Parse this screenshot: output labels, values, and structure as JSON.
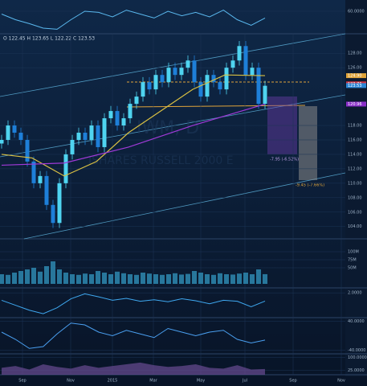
{
  "chart_data": [
    {
      "type": "candlestick",
      "header": "O 122.45 H 123.65 L 122.22 C 123.53",
      "watermark": [
        "IWM, D",
        "ISHARES RUSSELL 2000 E"
      ],
      "annotations": [
        "-7.95 (-6.52%)",
        "-9.45 (-7.66%)"
      ],
      "up_color": "#4fd4f0",
      "down_color": "#1e7fd8",
      "x": [
        2,
        10,
        18,
        26,
        34,
        42,
        50,
        58,
        66,
        74,
        82,
        90,
        98,
        106,
        114,
        122,
        130,
        138,
        146,
        154,
        162,
        170,
        178,
        186,
        194,
        202,
        210,
        218,
        226,
        234,
        242,
        250,
        258,
        266,
        274,
        282,
        290,
        298,
        306,
        314,
        322,
        330
      ],
      "open": [
        115.5,
        116,
        118,
        117,
        116,
        113,
        110,
        111,
        107,
        104.5,
        110,
        114,
        116,
        117,
        116,
        118,
        115,
        119,
        120,
        118,
        119,
        121,
        122,
        124,
        123,
        125,
        124,
        126,
        125,
        126,
        127,
        124,
        122,
        125,
        124,
        123,
        126,
        127,
        129,
        125,
        126,
        121
      ],
      "high": [
        116.7,
        118.7,
        118.7,
        117.7,
        116.7,
        113.7,
        111.7,
        111.7,
        107.7,
        110.7,
        114.7,
        116.7,
        117.7,
        117.7,
        118.7,
        118.7,
        119.7,
        120.7,
        120.7,
        119.7,
        121.7,
        122.7,
        124.7,
        124.7,
        125.7,
        125.7,
        126.7,
        126.7,
        126.7,
        127.7,
        127.7,
        124.7,
        125.7,
        125.7,
        124.7,
        126.7,
        127.7,
        129.7,
        129.7,
        126.7,
        126.7,
        124.2
      ],
      "low": [
        114.8,
        115.3,
        116.3,
        115.3,
        112.3,
        109.3,
        109.3,
        106.3,
        103.8,
        103.8,
        109.3,
        113.3,
        115.3,
        115.3,
        115.3,
        114.3,
        114.3,
        118.3,
        117.3,
        117.3,
        118.3,
        120.3,
        121.3,
        122.3,
        122.3,
        123.3,
        123.3,
        124.3,
        124.3,
        125.3,
        123.3,
        121.3,
        121.3,
        123.3,
        122.3,
        122.3,
        125.3,
        126.3,
        124.3,
        124.3,
        120.3,
        120.3
      ],
      "close": [
        116,
        118,
        117,
        116,
        113,
        110,
        111,
        107,
        104.5,
        110,
        114,
        116,
        117,
        116,
        118,
        115,
        119,
        120,
        118,
        119,
        121,
        122,
        124,
        123,
        125,
        124,
        126,
        125,
        126,
        127,
        124,
        122,
        125,
        124,
        123,
        126,
        127,
        129,
        125,
        126,
        121,
        123.5
      ],
      "lines": [
        {
          "color": "#d9c043",
          "x": [
            2,
            40,
            80,
            120,
            160,
            200,
            240,
            280,
            330
          ],
          "values": [
            114,
            113.5,
            111,
            113,
            117,
            120,
            123,
            125,
            124.9
          ]
        },
        {
          "color": "#a03ad8",
          "x": [
            2,
            80,
            160,
            240,
            330
          ],
          "values": [
            112.5,
            112.8,
            115,
            118,
            120.96
          ]
        }
      ],
      "price_labels": [
        {
          "value": 124.9,
          "label": "124.90",
          "color": "#e0a43a"
        },
        {
          "value": 123.76,
          "label": "123.76",
          "color": "#d8333f"
        },
        {
          "value": 123.53,
          "label": "123.53",
          "color": "#2b86d6"
        },
        {
          "value": 120.96,
          "label": "120.96",
          "color": "#8a2fc9"
        }
      ],
      "xlim": [
        0,
        430
      ],
      "ylim": [
        102.3,
        130.7
      ],
      "xticks": [
        {
          "value": 28,
          "label": "Sep"
        },
        {
          "value": 88,
          "label": "Nov"
        },
        {
          "value": 140,
          "label": "2015"
        },
        {
          "value": 191,
          "label": "Mar"
        },
        {
          "value": 250,
          "label": "May"
        },
        {
          "value": 305,
          "label": "Jul"
        },
        {
          "value": 365,
          "label": "Sep"
        },
        {
          "value": 425,
          "label": "Nov"
        }
      ],
      "yticks": [
        {
          "value": 104,
          "label": "104.00"
        },
        {
          "value": 106,
          "label": "106.00"
        },
        {
          "value": 108,
          "label": "108.00"
        },
        {
          "value": 110,
          "label": "110.00"
        },
        {
          "value": 112,
          "label": "112.00"
        },
        {
          "value": 114,
          "label": "114.00"
        },
        {
          "value": 116,
          "label": "116.00"
        },
        {
          "value": 118,
          "label": "118.00"
        },
        {
          "value": 126,
          "label": "126.00"
        },
        {
          "value": 128,
          "label": "128.00"
        }
      ]
    },
    {
      "type": "line",
      "color": "#5ab8ee",
      "ylim": [
        20,
        80
      ],
      "yticks": [
        {
          "value": 60,
          "label": "60.0000"
        }
      ],
      "values": [
        55,
        45,
        38,
        30,
        28,
        45,
        60,
        58,
        50,
        62,
        55,
        48,
        60,
        52,
        58,
        50,
        62,
        45,
        35,
        48
      ]
    },
    {
      "type": "bar",
      "color": "#2f8fb8",
      "ylim": [
        -12.5,
        140
      ],
      "yticks": [
        {
          "value": 100,
          "label": "100M"
        },
        {
          "value": 75,
          "label": "75M"
        },
        {
          "value": 50,
          "label": "50M"
        }
      ],
      "values": [
        30,
        28,
        35,
        40,
        45,
        50,
        38,
        55,
        70,
        45,
        35,
        30,
        28,
        32,
        30,
        40,
        35,
        30,
        38,
        33,
        30,
        28,
        35,
        32,
        30,
        28,
        30,
        33,
        29,
        31,
        40,
        35,
        30,
        28,
        33,
        30,
        29,
        32,
        35,
        30,
        45,
        30.169
      ]
    },
    {
      "type": "line",
      "color": "#3fa8f0",
      "ylim": [
        -3,
        3
      ],
      "yticks": [
        {
          "value": 2,
          "label": "2.0000"
        }
      ],
      "values": [
        0.5,
        -0.5,
        -1.5,
        -2.2,
        -1,
        0.8,
        1.8,
        1.2,
        0.5,
        0.9,
        0.3,
        0.6,
        0.2,
        0.8,
        0.4,
        -0.2,
        0.5,
        0.3,
        -0.8,
        0.34
      ]
    },
    {
      "type": "line",
      "color": "#4a9ff0",
      "ylim": [
        -50,
        50
      ],
      "yticks": [
        {
          "value": 40,
          "label": "40.0000"
        },
        {
          "value": -40,
          "label": "-40.0000"
        }
      ],
      "values": [
        10,
        -10,
        -35,
        -30,
        5,
        35,
        30,
        10,
        0,
        15,
        5,
        -5,
        20,
        10,
        0,
        10,
        15,
        -10,
        -20,
        -12
      ]
    },
    {
      "type": "area",
      "color": "#6a4c93",
      "ylim": [
        0,
        120
      ],
      "yticks": [
        {
          "value": 100,
          "label": "100.0000"
        },
        {
          "value": 25,
          "label": "25.0000"
        }
      ],
      "values": [
        40,
        50,
        30,
        60,
        45,
        35,
        55,
        40,
        50,
        60,
        70,
        55,
        45,
        50,
        60,
        40,
        35,
        55,
        30,
        33
      ]
    }
  ]
}
